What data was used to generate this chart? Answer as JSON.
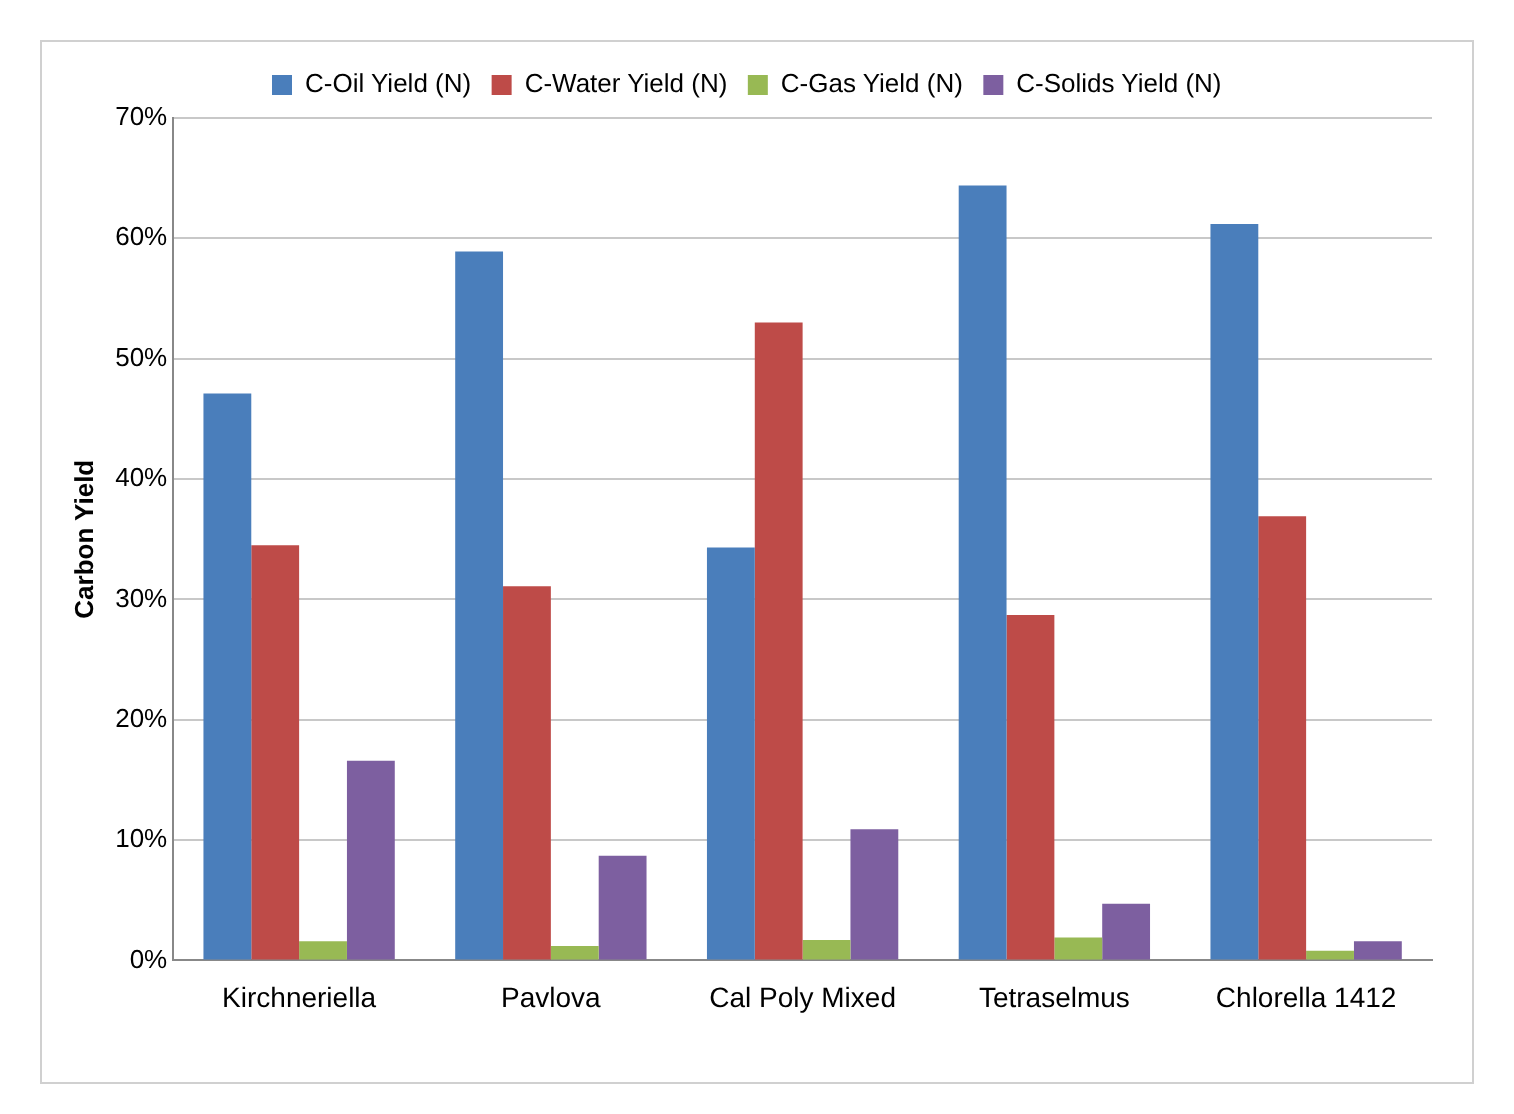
{
  "chart_data": {
    "type": "bar",
    "ylabel": "Carbon Yield",
    "categories": [
      "Kirchneriella",
      "Pavlova",
      "Cal Poly Mixed",
      "Tetraselmus",
      "Chlorella 1412"
    ],
    "series": [
      {
        "name": "C-Oil Yield (N)",
        "color": "#4a7ebb",
        "values": [
          47.1,
          58.9,
          34.3,
          64.4,
          61.2
        ]
      },
      {
        "name": "C-Water Yield (N)",
        "color": "#be4b48",
        "values": [
          34.5,
          31.1,
          53.0,
          28.7,
          36.9
        ]
      },
      {
        "name": "C-Gas Yield (N)",
        "color": "#98b954",
        "values": [
          1.6,
          1.2,
          1.7,
          1.9,
          0.8
        ]
      },
      {
        "name": "C-Solids Yield (N)",
        "color": "#7d5fa0",
        "values": [
          16.6,
          8.7,
          10.9,
          4.7,
          1.6
        ]
      }
    ],
    "ylim": [
      0,
      70
    ],
    "yticks": [
      {
        "value": 0,
        "label": "0%"
      },
      {
        "value": 10,
        "label": "10%"
      },
      {
        "value": 20,
        "label": "20%"
      },
      {
        "value": 30,
        "label": "30%"
      },
      {
        "value": 40,
        "label": "40%"
      },
      {
        "value": 50,
        "label": "50%"
      },
      {
        "value": 60,
        "label": "60%"
      },
      {
        "value": 70,
        "label": "70%"
      }
    ],
    "grid": "y",
    "legend": "top"
  }
}
